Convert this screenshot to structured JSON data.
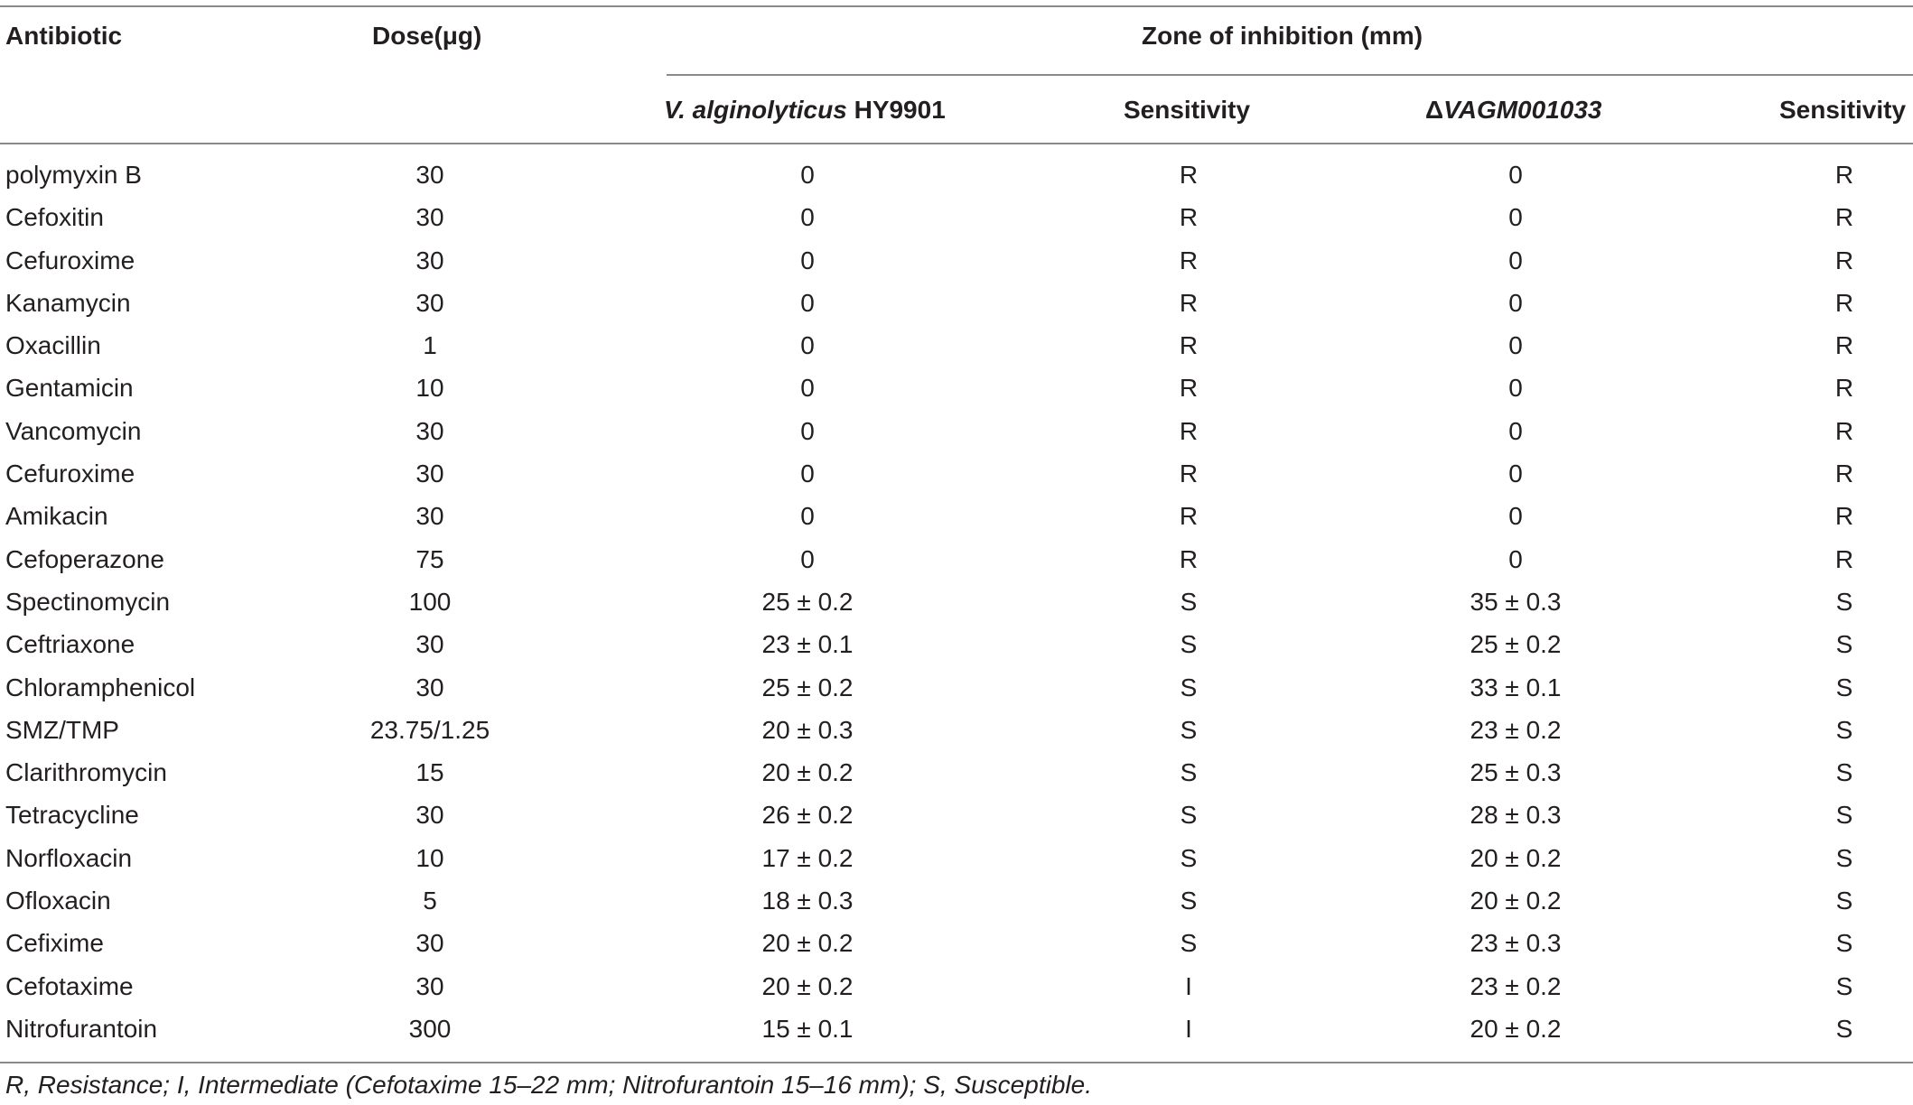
{
  "header": {
    "antibiotic": "Antibiotic",
    "dose": "Dose(μg)",
    "zone": "Zone of inhibition (mm)",
    "strain_italic": "V. alginolyticus",
    "strain_rest": " HY9901",
    "sensitivity_1": "Sensitivity",
    "mutant_delta": "Δ",
    "mutant_italic": "VAGM001033",
    "sensitivity_2": "Sensitivity"
  },
  "rows": [
    {
      "antibiotic": "polymyxin B",
      "dose": "30",
      "wt": "0",
      "s1": "R",
      "mut": "0",
      "s2": "R"
    },
    {
      "antibiotic": "Cefoxitin",
      "dose": "30",
      "wt": "0",
      "s1": "R",
      "mut": "0",
      "s2": "R"
    },
    {
      "antibiotic": "Cefuroxime",
      "dose": "30",
      "wt": "0",
      "s1": "R",
      "mut": "0",
      "s2": "R"
    },
    {
      "antibiotic": "Kanamycin",
      "dose": "30",
      "wt": "0",
      "s1": "R",
      "mut": "0",
      "s2": "R"
    },
    {
      "antibiotic": "Oxacillin",
      "dose": "1",
      "wt": "0",
      "s1": "R",
      "mut": "0",
      "s2": "R"
    },
    {
      "antibiotic": "Gentamicin",
      "dose": "10",
      "wt": "0",
      "s1": "R",
      "mut": "0",
      "s2": "R"
    },
    {
      "antibiotic": "Vancomycin",
      "dose": "30",
      "wt": "0",
      "s1": "R",
      "mut": "0",
      "s2": "R"
    },
    {
      "antibiotic": "Cefuroxime",
      "dose": "30",
      "wt": "0",
      "s1": "R",
      "mut": "0",
      "s2": "R"
    },
    {
      "antibiotic": "Amikacin",
      "dose": "30",
      "wt": "0",
      "s1": "R",
      "mut": "0",
      "s2": "R"
    },
    {
      "antibiotic": "Cefoperazone",
      "dose": "75",
      "wt": "0",
      "s1": "R",
      "mut": "0",
      "s2": "R"
    },
    {
      "antibiotic": "Spectinomycin",
      "dose": "100",
      "wt": "25 ± 0.2",
      "s1": "S",
      "mut": "35 ± 0.3",
      "s2": "S"
    },
    {
      "antibiotic": "Ceftriaxone",
      "dose": "30",
      "wt": "23 ± 0.1",
      "s1": "S",
      "mut": "25 ± 0.2",
      "s2": "S"
    },
    {
      "antibiotic": "Chloramphenicol",
      "dose": "30",
      "wt": "25 ± 0.2",
      "s1": "S",
      "mut": "33 ± 0.1",
      "s2": "S"
    },
    {
      "antibiotic": "SMZ/TMP",
      "dose": "23.75/1.25",
      "wt": "20 ± 0.3",
      "s1": "S",
      "mut": "23 ± 0.2",
      "s2": "S"
    },
    {
      "antibiotic": "Clarithromycin",
      "dose": "15",
      "wt": "20 ± 0.2",
      "s1": "S",
      "mut": "25 ± 0.3",
      "s2": "S"
    },
    {
      "antibiotic": "Tetracycline",
      "dose": "30",
      "wt": "26 ± 0.2",
      "s1": "S",
      "mut": "28 ± 0.3",
      "s2": "S"
    },
    {
      "antibiotic": "Norfloxacin",
      "dose": "10",
      "wt": "17 ± 0.2",
      "s1": "S",
      "mut": "20 ± 0.2",
      "s2": "S"
    },
    {
      "antibiotic": "Ofloxacin",
      "dose": "5",
      "wt": "18 ± 0.3",
      "s1": "S",
      "mut": "20 ± 0.2",
      "s2": "S"
    },
    {
      "antibiotic": "Cefixime",
      "dose": "30",
      "wt": "20 ± 0.2",
      "s1": "S",
      "mut": "23 ± 0.3",
      "s2": "S"
    },
    {
      "antibiotic": "Cefotaxime",
      "dose": "30",
      "wt": "20 ± 0.2",
      "s1": "I",
      "mut": "23 ± 0.2",
      "s2": "S"
    },
    {
      "antibiotic": "Nitrofurantoin",
      "dose": "300",
      "wt": "15 ± 0.1",
      "s1": "I",
      "mut": "20 ± 0.2",
      "s2": "S"
    }
  ],
  "footnote": "R, Resistance; I, Intermediate (Cefotaxime 15–22 mm; Nitrofurantoin 15–16 mm); S, Susceptible."
}
